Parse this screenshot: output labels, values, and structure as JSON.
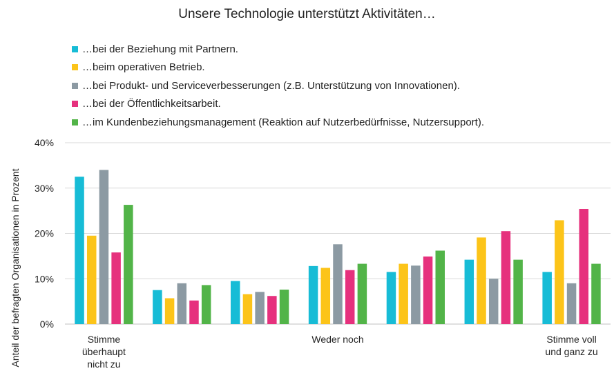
{
  "chart_data": {
    "type": "bar",
    "title": "Unsere Technologie unterstützt Aktivitäten…",
    "ylabel": "Anteil der befragten Organisationen in Prozent",
    "xlabel": "",
    "ylim": [
      0,
      40
    ],
    "yticks": [
      0,
      10,
      20,
      30,
      40
    ],
    "ytick_suffix": "%",
    "grid": true,
    "legend_position": "top-left",
    "categories": [
      "1",
      "2",
      "3",
      "4",
      "5",
      "6",
      "7"
    ],
    "category_labels": [
      [
        "Stimme",
        "überhaupt",
        "nicht zu"
      ],
      [],
      [],
      [
        "Weder noch"
      ],
      [],
      [],
      [
        "Stimme voll",
        "und ganz zu"
      ]
    ],
    "series": [
      {
        "name": "…bei der Beziehung mit Partnern.",
        "color": "#17bcd6",
        "values": [
          32.5,
          7.5,
          9.5,
          12.8,
          11.5,
          14.2,
          11.5
        ]
      },
      {
        "name": "…beim operativen Betrieb.",
        "color": "#fcc419",
        "values": [
          19.5,
          5.7,
          6.6,
          12.4,
          13.3,
          19.1,
          22.9
        ]
      },
      {
        "name": "…bei Produkt- und Serviceverbesserungen (z.B. Unterstützung von Innovationen).",
        "color": "#8c9aa3",
        "values": [
          34.0,
          9.0,
          7.1,
          17.6,
          12.9,
          10.0,
          9.0
        ]
      },
      {
        "name": "…bei der Öffentlichkeitsarbeit.",
        "color": "#e6317d",
        "values": [
          15.8,
          5.2,
          6.2,
          11.9,
          14.9,
          20.5,
          25.4
        ]
      },
      {
        "name": "…im Kundenbeziehungsmanagement  (Reaktion auf Nutzerbedürfnisse, Nutzersupport).",
        "color": "#52b448",
        "values": [
          26.3,
          8.6,
          7.6,
          13.3,
          16.2,
          14.2,
          13.3
        ]
      }
    ]
  }
}
